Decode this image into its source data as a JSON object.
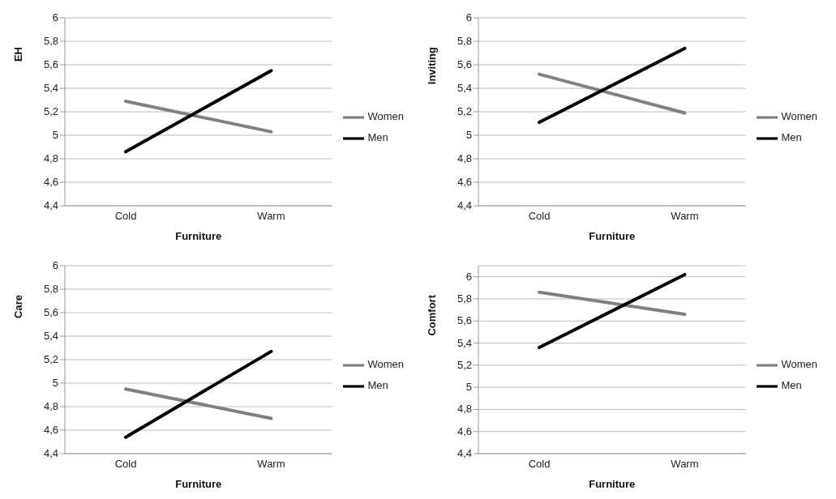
{
  "chart_data": [
    {
      "type": "line",
      "ylabel": "EH",
      "xlabel": "Furniture",
      "categories": [
        "Cold",
        "Warm"
      ],
      "series": [
        {
          "name": "Women",
          "color": "#808080",
          "values": [
            5.29,
            5.03
          ]
        },
        {
          "name": "Men",
          "color": "#000000",
          "values": [
            4.86,
            5.55
          ]
        }
      ],
      "ylim": [
        4.4,
        6
      ],
      "yticks": [
        {
          "value": 4.4,
          "label": "4,4"
        },
        {
          "value": 4.6,
          "label": "4,6"
        },
        {
          "value": 4.8,
          "label": "4,8"
        },
        {
          "value": 5,
          "label": "5"
        },
        {
          "value": 5.2,
          "label": "5,2"
        },
        {
          "value": 5.4,
          "label": "5,4"
        },
        {
          "value": 5.6,
          "label": "5,6"
        },
        {
          "value": 5.8,
          "label": "5,8"
        },
        {
          "value": 6,
          "label": "6"
        }
      ],
      "grid": "y",
      "legend": "right"
    },
    {
      "type": "line",
      "ylabel": "Inviting",
      "xlabel": "Furniture",
      "categories": [
        "Cold",
        "Warm"
      ],
      "series": [
        {
          "name": "Women",
          "color": "#808080",
          "values": [
            5.52,
            5.19
          ]
        },
        {
          "name": "Men",
          "color": "#000000",
          "values": [
            5.11,
            5.74
          ]
        }
      ],
      "ylim": [
        4.4,
        6
      ],
      "yticks": [
        {
          "value": 4.4,
          "label": "4,4"
        },
        {
          "value": 4.6,
          "label": "4,6"
        },
        {
          "value": 4.8,
          "label": "4,8"
        },
        {
          "value": 5,
          "label": "5"
        },
        {
          "value": 5.2,
          "label": "5,2"
        },
        {
          "value": 5.4,
          "label": "5,4"
        },
        {
          "value": 5.6,
          "label": "5,6"
        },
        {
          "value": 5.8,
          "label": "5,8"
        },
        {
          "value": 6,
          "label": "6"
        }
      ],
      "grid": "y",
      "legend": "right"
    },
    {
      "type": "line",
      "ylabel": "Care",
      "xlabel": "Furniture",
      "categories": [
        "Cold",
        "Warm"
      ],
      "series": [
        {
          "name": "Women",
          "color": "#808080",
          "values": [
            4.95,
            4.7
          ]
        },
        {
          "name": "Men",
          "color": "#000000",
          "values": [
            4.54,
            5.27
          ]
        }
      ],
      "ylim": [
        4.4,
        6
      ],
      "yticks": [
        {
          "value": 4.4,
          "label": "4,4"
        },
        {
          "value": 4.6,
          "label": "4,6"
        },
        {
          "value": 4.8,
          "label": "4,8"
        },
        {
          "value": 5,
          "label": "5"
        },
        {
          "value": 5.2,
          "label": "5,2"
        },
        {
          "value": 5.4,
          "label": "5,4"
        },
        {
          "value": 5.6,
          "label": "5,6"
        },
        {
          "value": 5.8,
          "label": "5,8"
        },
        {
          "value": 6,
          "label": "6"
        }
      ],
      "grid": "y",
      "legend": "right"
    },
    {
      "type": "line",
      "ylabel": "Comfort",
      "xlabel": "Furniture",
      "categories": [
        "Cold",
        "Warm"
      ],
      "series": [
        {
          "name": "Women",
          "color": "#808080",
          "values": [
            5.86,
            5.66
          ]
        },
        {
          "name": "Men",
          "color": "#000000",
          "values": [
            5.36,
            6.02
          ]
        }
      ],
      "ylim": [
        4.4,
        6.1
      ],
      "yticks": [
        {
          "value": 4.4,
          "label": "4,4"
        },
        {
          "value": 4.6,
          "label": "4,6"
        },
        {
          "value": 4.8,
          "label": "4,8"
        },
        {
          "value": 5,
          "label": "5"
        },
        {
          "value": 5.2,
          "label": "5,2"
        },
        {
          "value": 5.4,
          "label": "5,4"
        },
        {
          "value": 5.6,
          "label": "5,6"
        },
        {
          "value": 5.8,
          "label": "5,8"
        },
        {
          "value": 6,
          "label": "6"
        }
      ],
      "grid": "y",
      "legend": "right"
    }
  ]
}
